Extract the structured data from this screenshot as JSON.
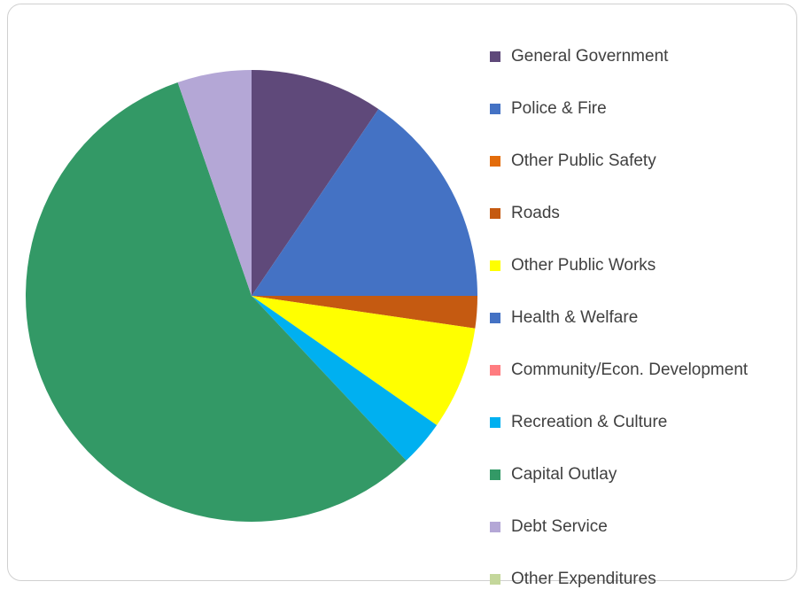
{
  "chart_data": {
    "type": "pie",
    "start_angle_deg": 0,
    "direction": "clockwise",
    "legend_position": "right",
    "slices": [
      {
        "label": "General Government",
        "value": 9.5,
        "color": "#5f497a"
      },
      {
        "label": "Police & Fire",
        "value": 15.5,
        "color": "#4472c4"
      },
      {
        "label": "Other Public Safety",
        "value": 0,
        "color": "#e36c0a"
      },
      {
        "label": "Roads",
        "value": 2.3,
        "color": "#c55a11"
      },
      {
        "label": "Other Public Works",
        "value": 7.4,
        "color": "#ffff00"
      },
      {
        "label": "Health & Welfare",
        "value": 0,
        "color": "#4472c4"
      },
      {
        "label": "Community/Econ. Development",
        "value": 0,
        "color": "#ff7c80"
      },
      {
        "label": "Recreation & Culture",
        "value": 3.3,
        "color": "#00b0f0"
      },
      {
        "label": "Capital Outlay",
        "value": 56.7,
        "color": "#339966"
      },
      {
        "label": "Debt Service",
        "value": 5.3,
        "color": "#b4a7d6"
      },
      {
        "label": "Other Expenditures",
        "value": 0,
        "color": "#c4d79b"
      }
    ]
  }
}
